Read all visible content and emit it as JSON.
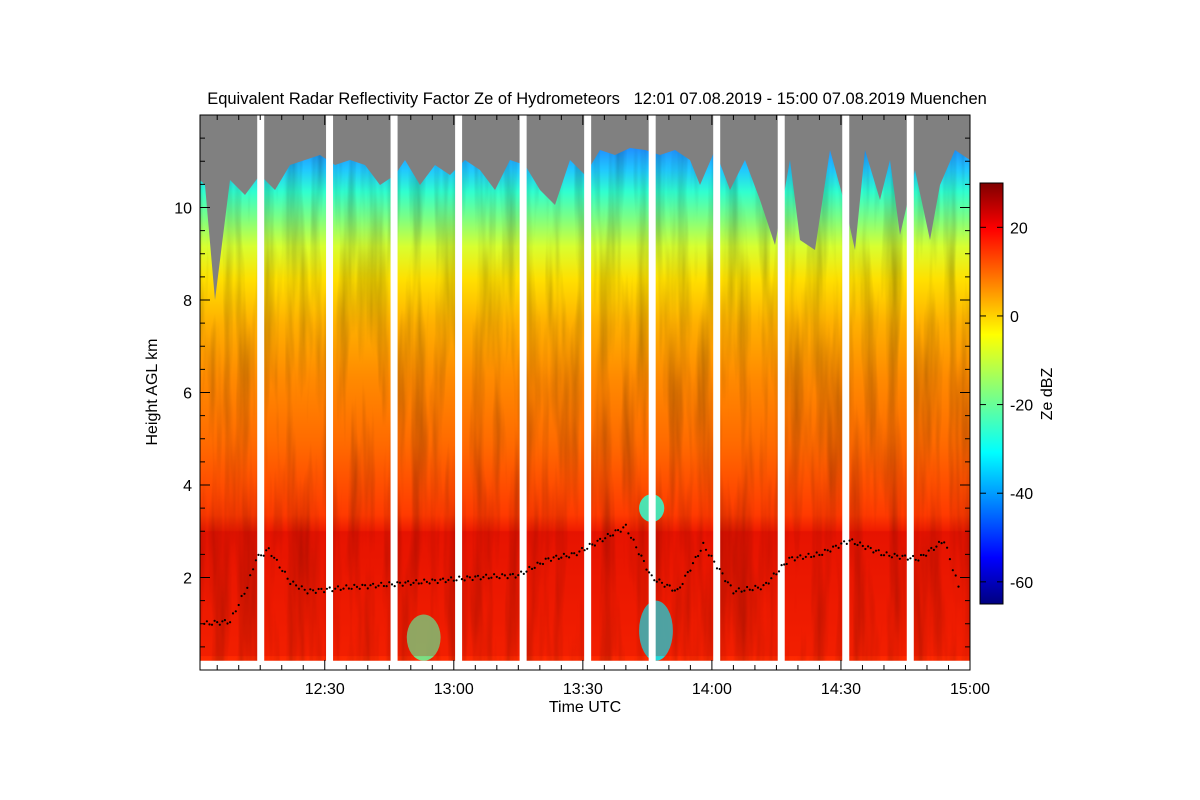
{
  "chart_data": {
    "type": "heatmap",
    "title": "Equivalent Radar Reflectivity Factor Ze of Hydrometeors   12:01 07.08.2019 - 15:00 07.08.2019 Muenchen",
    "xlabel": "Time UTC",
    "ylabel": "Height AGL km",
    "xlim": [
      "12:01",
      "15:00"
    ],
    "ylim": [
      0,
      12
    ],
    "x_ticks": [
      "12:30",
      "13:00",
      "13:30",
      "14:00",
      "14:30",
      "15:00"
    ],
    "x_tick_minutes": [
      30,
      60,
      90,
      120,
      150,
      180
    ],
    "y_ticks": [
      "2",
      "4",
      "6",
      "8",
      "10"
    ],
    "y_tick_values": [
      2,
      4,
      6,
      8,
      10
    ],
    "colorbar": {
      "label": "Ze dBZ",
      "range": [
        -65,
        30
      ],
      "ticks": [
        "20",
        "0",
        "-20",
        "-40",
        "-60"
      ],
      "tick_values": [
        20,
        0,
        -20,
        -40,
        -60
      ],
      "colormap": "jet"
    },
    "no_signal_color": "#808080",
    "data_gaps_utc": [
      "12:15",
      "12:31",
      "12:46",
      "13:01",
      "13:16",
      "13:31",
      "13:46",
      "14:01",
      "14:16",
      "14:31",
      "14:46"
    ],
    "profile": [
      {
        "height_km": 0.3,
        "ze_dbz": 22
      },
      {
        "height_km": 2.0,
        "ze_dbz": 22
      },
      {
        "height_km": 3.0,
        "ze_dbz": 20
      },
      {
        "height_km": 4.0,
        "ze_dbz": 14
      },
      {
        "height_km": 5.5,
        "ze_dbz": 12
      },
      {
        "height_km": 7.0,
        "ze_dbz": 6
      },
      {
        "height_km": 8.0,
        "ze_dbz": -2
      },
      {
        "height_km": 9.0,
        "ze_dbz": -10
      },
      {
        "height_km": 10.0,
        "ze_dbz": -22
      },
      {
        "height_km": 11.0,
        "ze_dbz": -30
      }
    ],
    "bright_band_height_km": 3.0,
    "cloud_base_series_name": "cloud base (black dots)",
    "cloud_base_km": [
      {
        "t": 2,
        "h": 1.0
      },
      {
        "t": 8,
        "h": 1.05
      },
      {
        "t": 12,
        "h": 1.8
      },
      {
        "t": 14,
        "h": 2.4
      },
      {
        "t": 17,
        "h": 2.6
      },
      {
        "t": 22,
        "h": 1.9
      },
      {
        "t": 26,
        "h": 1.7
      },
      {
        "t": 35,
        "h": 1.78
      },
      {
        "t": 45,
        "h": 1.85
      },
      {
        "t": 55,
        "h": 1.92
      },
      {
        "t": 65,
        "h": 2.0
      },
      {
        "t": 75,
        "h": 2.05
      },
      {
        "t": 82,
        "h": 2.4
      },
      {
        "t": 88,
        "h": 2.5
      },
      {
        "t": 94,
        "h": 2.8
      },
      {
        "t": 100,
        "h": 3.1
      },
      {
        "t": 106,
        "h": 2.0
      },
      {
        "t": 112,
        "h": 1.7
      },
      {
        "t": 118,
        "h": 2.7
      },
      {
        "t": 125,
        "h": 1.7
      },
      {
        "t": 132,
        "h": 1.8
      },
      {
        "t": 138,
        "h": 2.4
      },
      {
        "t": 145,
        "h": 2.5
      },
      {
        "t": 152,
        "h": 2.8
      },
      {
        "t": 160,
        "h": 2.5
      },
      {
        "t": 168,
        "h": 2.4
      },
      {
        "t": 174,
        "h": 2.8
      },
      {
        "t": 178,
        "h": 1.6
      }
    ],
    "low_echo_regions_km": [
      {
        "t_start": 50,
        "t_end": 56,
        "h_start": 0.2,
        "h_end": 1.2,
        "ze_dbz": -20
      },
      {
        "t_start": 104,
        "t_end": 110,
        "h_start": 0.2,
        "h_end": 1.5,
        "ze_dbz": -30
      },
      {
        "t_start": 104,
        "t_end": 108,
        "h_start": 3.2,
        "h_end": 3.8,
        "ze_dbz": -25
      }
    ]
  }
}
